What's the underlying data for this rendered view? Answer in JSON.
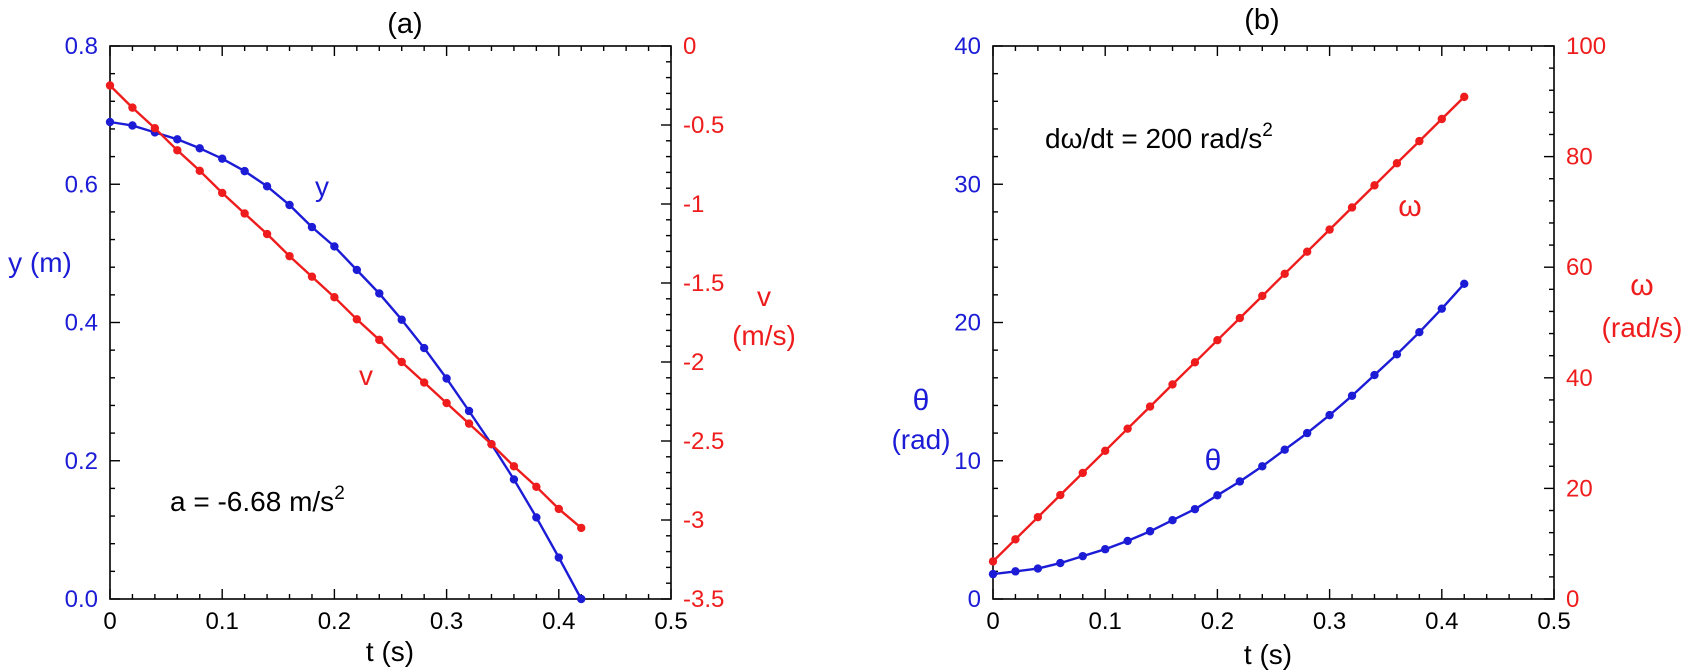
{
  "chart_data": [
    {
      "id": "a",
      "type": "line",
      "title": "(a)",
      "xlabel": "t (s)",
      "xlim": [
        0,
        0.5
      ],
      "xticks": [
        0,
        0.1,
        0.2,
        0.3,
        0.4,
        0.5
      ],
      "xtick_labels": [
        "0",
        "0.1",
        "0.2",
        "0.3",
        "0.4",
        "0.5"
      ],
      "left_axis": {
        "label": "y (m)",
        "lim": [
          0,
          0.8
        ],
        "ticks": [
          0,
          0.2,
          0.4,
          0.6,
          0.8
        ],
        "tick_labels": [
          "0.0",
          "0.2",
          "0.4",
          "0.6",
          "0.8"
        ],
        "color": "#1c1cd6"
      },
      "right_axis": {
        "label_lines": [
          "v",
          "(m/s)"
        ],
        "lim": [
          -3.5,
          0
        ],
        "ticks": [
          0,
          -0.5,
          -1,
          -1.5,
          -2,
          -2.5,
          -3,
          -3.5
        ],
        "tick_labels": [
          "0",
          "-0.5",
          "-1",
          "-1.5",
          "-2",
          "-2.5",
          "-3",
          "-3.5"
        ],
        "color": "#ee1c1c"
      },
      "annotation": {
        "text": "a = -6.68 m/s",
        "sup": "2"
      },
      "series": [
        {
          "name": "y",
          "axis": "left",
          "color": "#1c1cd6",
          "x": [
            0,
            0.02,
            0.04,
            0.06,
            0.08,
            0.1,
            0.12,
            0.14,
            0.16,
            0.18,
            0.2,
            0.22,
            0.24,
            0.26,
            0.28,
            0.3,
            0.32,
            0.34,
            0.36,
            0.38,
            0.4,
            0.42
          ],
          "values": [
            0.69,
            0.685,
            0.675,
            0.665,
            0.652,
            0.637,
            0.619,
            0.597,
            0.57,
            0.538,
            0.51,
            0.476,
            0.442,
            0.404,
            0.363,
            0.319,
            0.272,
            0.224,
            0.173,
            0.118,
            0.06,
            0.0
          ],
          "label": "y"
        },
        {
          "name": "v",
          "axis": "right",
          "color": "#ee1c1c",
          "x": [
            0,
            0.02,
            0.04,
            0.06,
            0.08,
            0.1,
            0.12,
            0.14,
            0.16,
            0.18,
            0.2,
            0.22,
            0.24,
            0.26,
            0.28,
            0.3,
            0.32,
            0.34,
            0.36,
            0.38,
            0.4,
            0.42
          ],
          "values": [
            -0.25,
            -0.39,
            -0.52,
            -0.66,
            -0.79,
            -0.93,
            -1.06,
            -1.19,
            -1.33,
            -1.46,
            -1.59,
            -1.73,
            -1.86,
            -2.0,
            -2.13,
            -2.26,
            -2.39,
            -2.52,
            -2.66,
            -2.79,
            -2.93,
            -3.05
          ],
          "label": "v"
        }
      ]
    },
    {
      "id": "b",
      "type": "line",
      "title": "(b)",
      "xlabel": "t (s)",
      "xlim": [
        0,
        0.5
      ],
      "xticks": [
        0,
        0.1,
        0.2,
        0.3,
        0.4,
        0.5
      ],
      "xtick_labels": [
        "0",
        "0.1",
        "0.2",
        "0.3",
        "0.4",
        "0.5"
      ],
      "left_axis": {
        "label_lines": [
          "θ",
          "(rad)"
        ],
        "lim": [
          0,
          40
        ],
        "ticks": [
          0,
          10,
          20,
          30,
          40
        ],
        "tick_labels": [
          "0",
          "10",
          "20",
          "30",
          "40"
        ],
        "color": "#1c1cd6"
      },
      "right_axis": {
        "label_lines": [
          "ω",
          "(rad/s)"
        ],
        "lim": [
          0,
          100
        ],
        "ticks": [
          0,
          20,
          40,
          60,
          80,
          100
        ],
        "tick_labels": [
          "0",
          "20",
          "40",
          "60",
          "80",
          "100"
        ],
        "color": "#ee1c1c"
      },
      "annotation": {
        "text": "dω/dt = 200 rad/s",
        "sup": "2"
      },
      "series": [
        {
          "name": "theta",
          "axis": "left",
          "color": "#1c1cd6",
          "x": [
            0,
            0.02,
            0.04,
            0.06,
            0.08,
            0.1,
            0.12,
            0.14,
            0.16,
            0.18,
            0.2,
            0.22,
            0.24,
            0.26,
            0.28,
            0.3,
            0.32,
            0.34,
            0.36,
            0.38,
            0.4,
            0.42
          ],
          "values": [
            1.8,
            2.0,
            2.2,
            2.6,
            3.1,
            3.6,
            4.2,
            4.9,
            5.7,
            6.5,
            7.5,
            8.5,
            9.6,
            10.8,
            12.0,
            13.3,
            14.7,
            16.2,
            17.7,
            19.3,
            21.0,
            22.8
          ],
          "label": "θ"
        },
        {
          "name": "omega",
          "axis": "right",
          "color": "#ee1c1c",
          "x": [
            0,
            0.02,
            0.04,
            0.06,
            0.08,
            0.1,
            0.12,
            0.14,
            0.16,
            0.18,
            0.2,
            0.22,
            0.24,
            0.26,
            0.28,
            0.3,
            0.32,
            0.34,
            0.36,
            0.38,
            0.4,
            0.42
          ],
          "values": [
            6.8,
            10.8,
            14.8,
            18.8,
            22.8,
            26.8,
            30.8,
            34.8,
            38.8,
            42.8,
            46.8,
            50.8,
            54.8,
            58.8,
            62.8,
            66.8,
            70.8,
            74.8,
            78.8,
            82.8,
            86.8,
            90.8
          ],
          "label": "ω"
        }
      ]
    }
  ]
}
